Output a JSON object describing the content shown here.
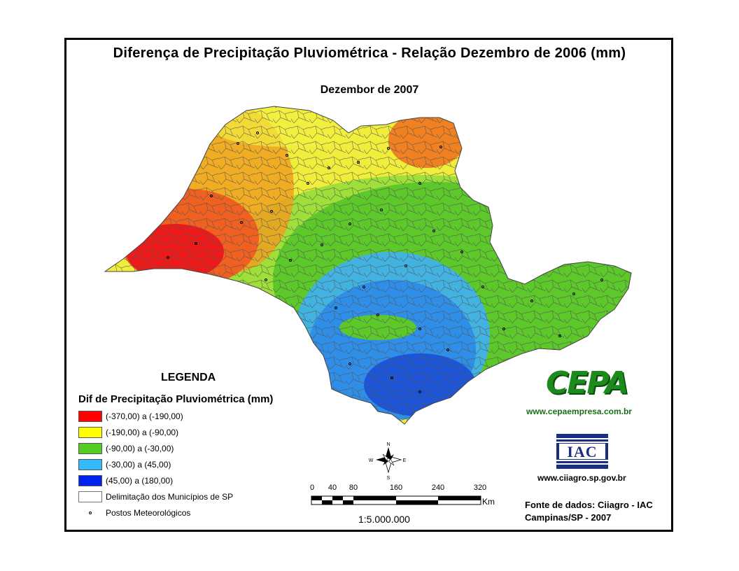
{
  "title": "Diferença de Precipitação Pluviométrica - Relação Dezembro de 2006 (mm)",
  "subtitle": "Dezembor de 2007",
  "legend": {
    "heading": "LEGENDA",
    "title": "Dif de Precipitação Pluviométrica (mm)",
    "classes": [
      {
        "label": "(-370,00) a (-190,00)",
        "color": "#ff0000"
      },
      {
        "label": "(-190,00) a (-90,00)",
        "color": "#ffff00"
      },
      {
        "label": "(-90,00) a (-30,00)",
        "color": "#55cc22"
      },
      {
        "label": "(-30,00) a (45,00)",
        "color": "#33bbff"
      },
      {
        "label": "(45,00) a (180,00)",
        "color": "#0022ee"
      }
    ],
    "municipios_label": "Delimitação dos Municípios de SP",
    "postos_label": "Postos Meteorológicos"
  },
  "north_arrow": {
    "n": "N",
    "s": "S",
    "e": "E",
    "w": "W"
  },
  "scale": {
    "ticks": [
      "0",
      "40",
      "80",
      "160",
      "240",
      "320"
    ],
    "unit": "Km",
    "ratio": "1:5.000.000"
  },
  "logos": {
    "cepa_text": "CEPA",
    "cepa_url": "www.cepaempresa.com.br",
    "iac_text": "IAC",
    "iac_url": "www.ciiagro.sp.gov.br"
  },
  "source": {
    "line1": "Fonte de dados: Ciiagro - IAC",
    "line2": "Campinas/SP - 2007"
  }
}
